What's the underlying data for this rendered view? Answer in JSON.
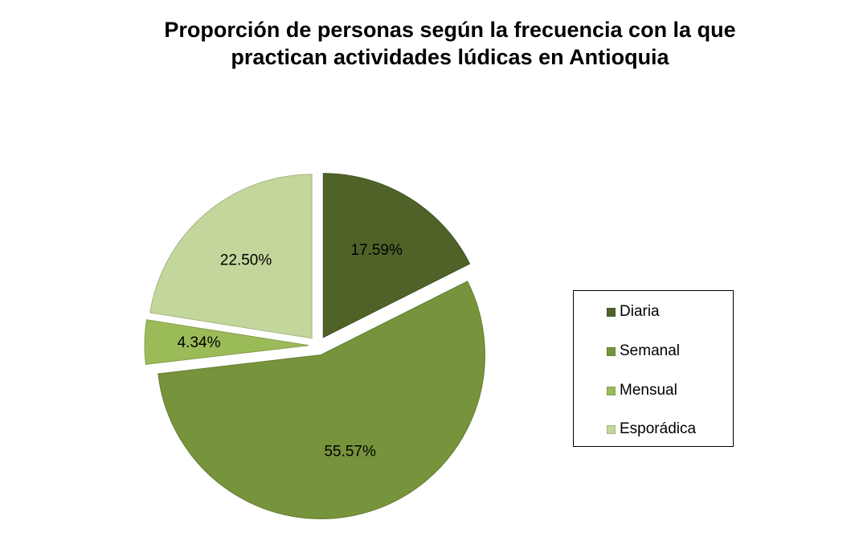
{
  "chart_data": {
    "type": "pie",
    "title": "Proporción de personas según la frecuencia con la que practican actividades lúdicas en Antioquia",
    "title_lines": [
      "Proporción de personas según la frecuencia con la que",
      "practican actividades lúdicas en Antioquia"
    ],
    "categories": [
      "Diaria",
      "Semanal",
      "Mensual",
      "Esporádica"
    ],
    "values": [
      17.59,
      55.57,
      4.34,
      22.5
    ],
    "data_labels": [
      "17.59%",
      "55.57%",
      "4.34%",
      "22.50%"
    ],
    "colors": [
      "#4f6228",
      "#77933c",
      "#9bbb59",
      "#c3d69b"
    ],
    "exploded": true,
    "legend_position": "right"
  }
}
